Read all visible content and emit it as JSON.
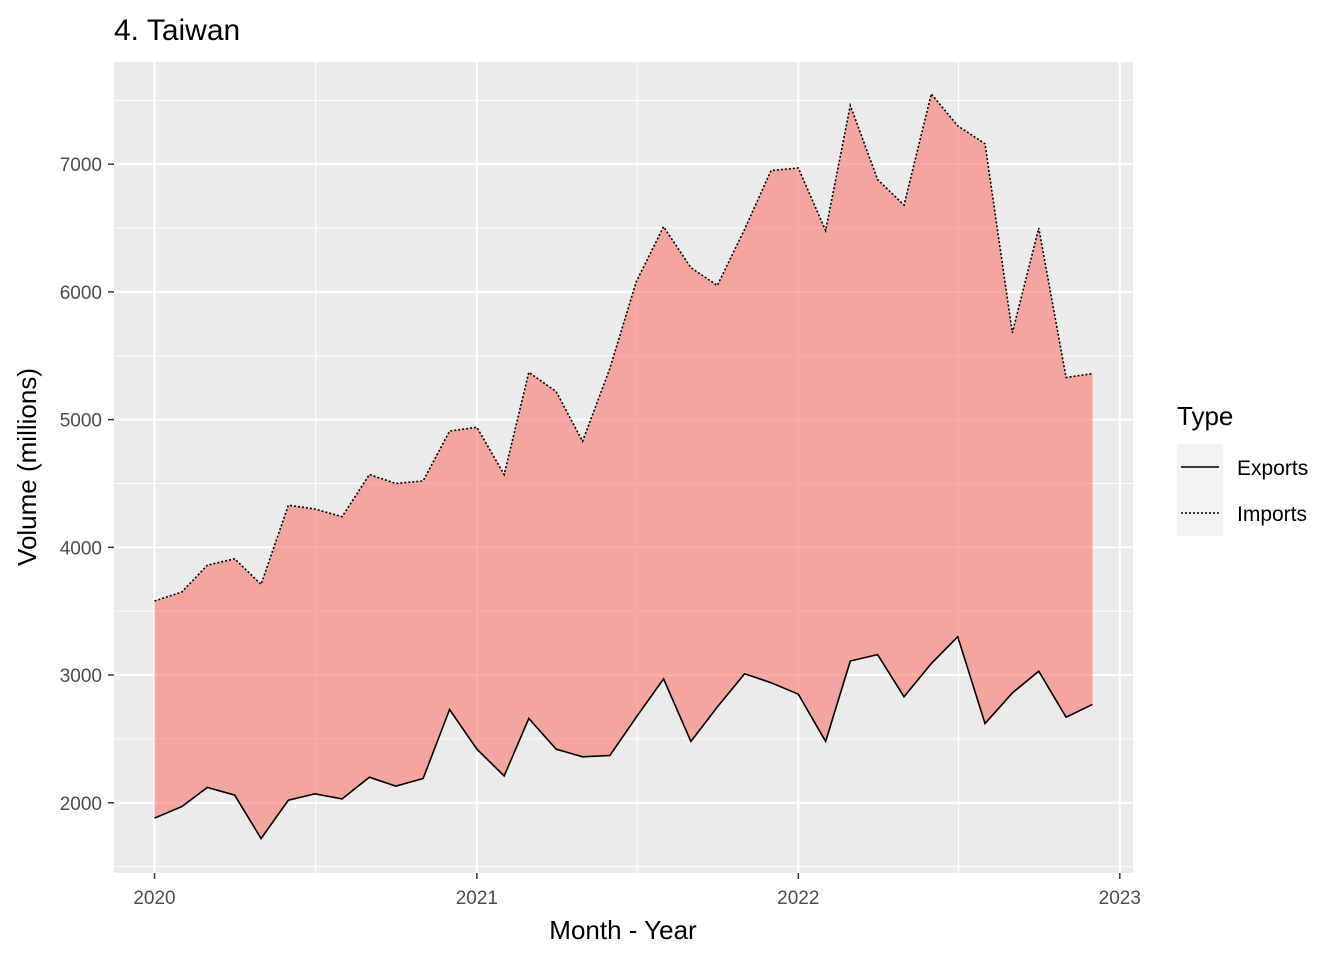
{
  "chart_data": {
    "type": "area",
    "title": "4. Taiwan",
    "xlabel": "Month - Year",
    "ylabel": "Volume (millions)",
    "x_ticks": [
      "2020",
      "2021",
      "2022",
      "2023"
    ],
    "y_ticks": [
      2000,
      3000,
      4000,
      5000,
      6000,
      7000
    ],
    "xlim": [
      "2019-11-16",
      "2023-01-16"
    ],
    "ylim": [
      1450,
      7800
    ],
    "grid": true,
    "legend": {
      "title": "Type",
      "placement": "right",
      "entries": [
        {
          "name": "Exports",
          "linetype": "solid"
        },
        {
          "name": "Imports",
          "linetype": "dotted"
        }
      ]
    },
    "fill_color": "#F8766D",
    "x": [
      "2020-01",
      "2020-02",
      "2020-03",
      "2020-04",
      "2020-05",
      "2020-06",
      "2020-07",
      "2020-08",
      "2020-09",
      "2020-10",
      "2020-11",
      "2020-12",
      "2021-01",
      "2021-02",
      "2021-03",
      "2021-04",
      "2021-05",
      "2021-06",
      "2021-07",
      "2021-08",
      "2021-09",
      "2021-10",
      "2021-11",
      "2021-12",
      "2022-01",
      "2022-02",
      "2022-03",
      "2022-04",
      "2022-05",
      "2022-06",
      "2022-07",
      "2022-08",
      "2022-09",
      "2022-10",
      "2022-11",
      "2022-12"
    ],
    "series": [
      {
        "name": "Exports",
        "linetype": "solid",
        "values": [
          1880,
          1970,
          2120,
          2060,
          1720,
          2020,
          2070,
          2030,
          2200,
          2130,
          2190,
          2730,
          2420,
          2210,
          2660,
          2420,
          2360,
          2370,
          2670,
          2970,
          2480,
          2750,
          3010,
          2940,
          2850,
          2480,
          3110,
          3160,
          2830,
          3090,
          3300,
          2620,
          2860,
          3030,
          2670,
          2770
        ]
      },
      {
        "name": "Imports",
        "linetype": "dotted",
        "values": [
          3580,
          3650,
          3860,
          3910,
          3710,
          4330,
          4300,
          4240,
          4570,
          4500,
          4520,
          4910,
          4940,
          4570,
          5370,
          5220,
          4830,
          5400,
          6080,
          6510,
          6190,
          6050,
          6490,
          6950,
          6970,
          6480,
          7460,
          6880,
          6680,
          7550,
          7300,
          7160,
          5680,
          6500,
          5330,
          5360
        ]
      }
    ]
  }
}
